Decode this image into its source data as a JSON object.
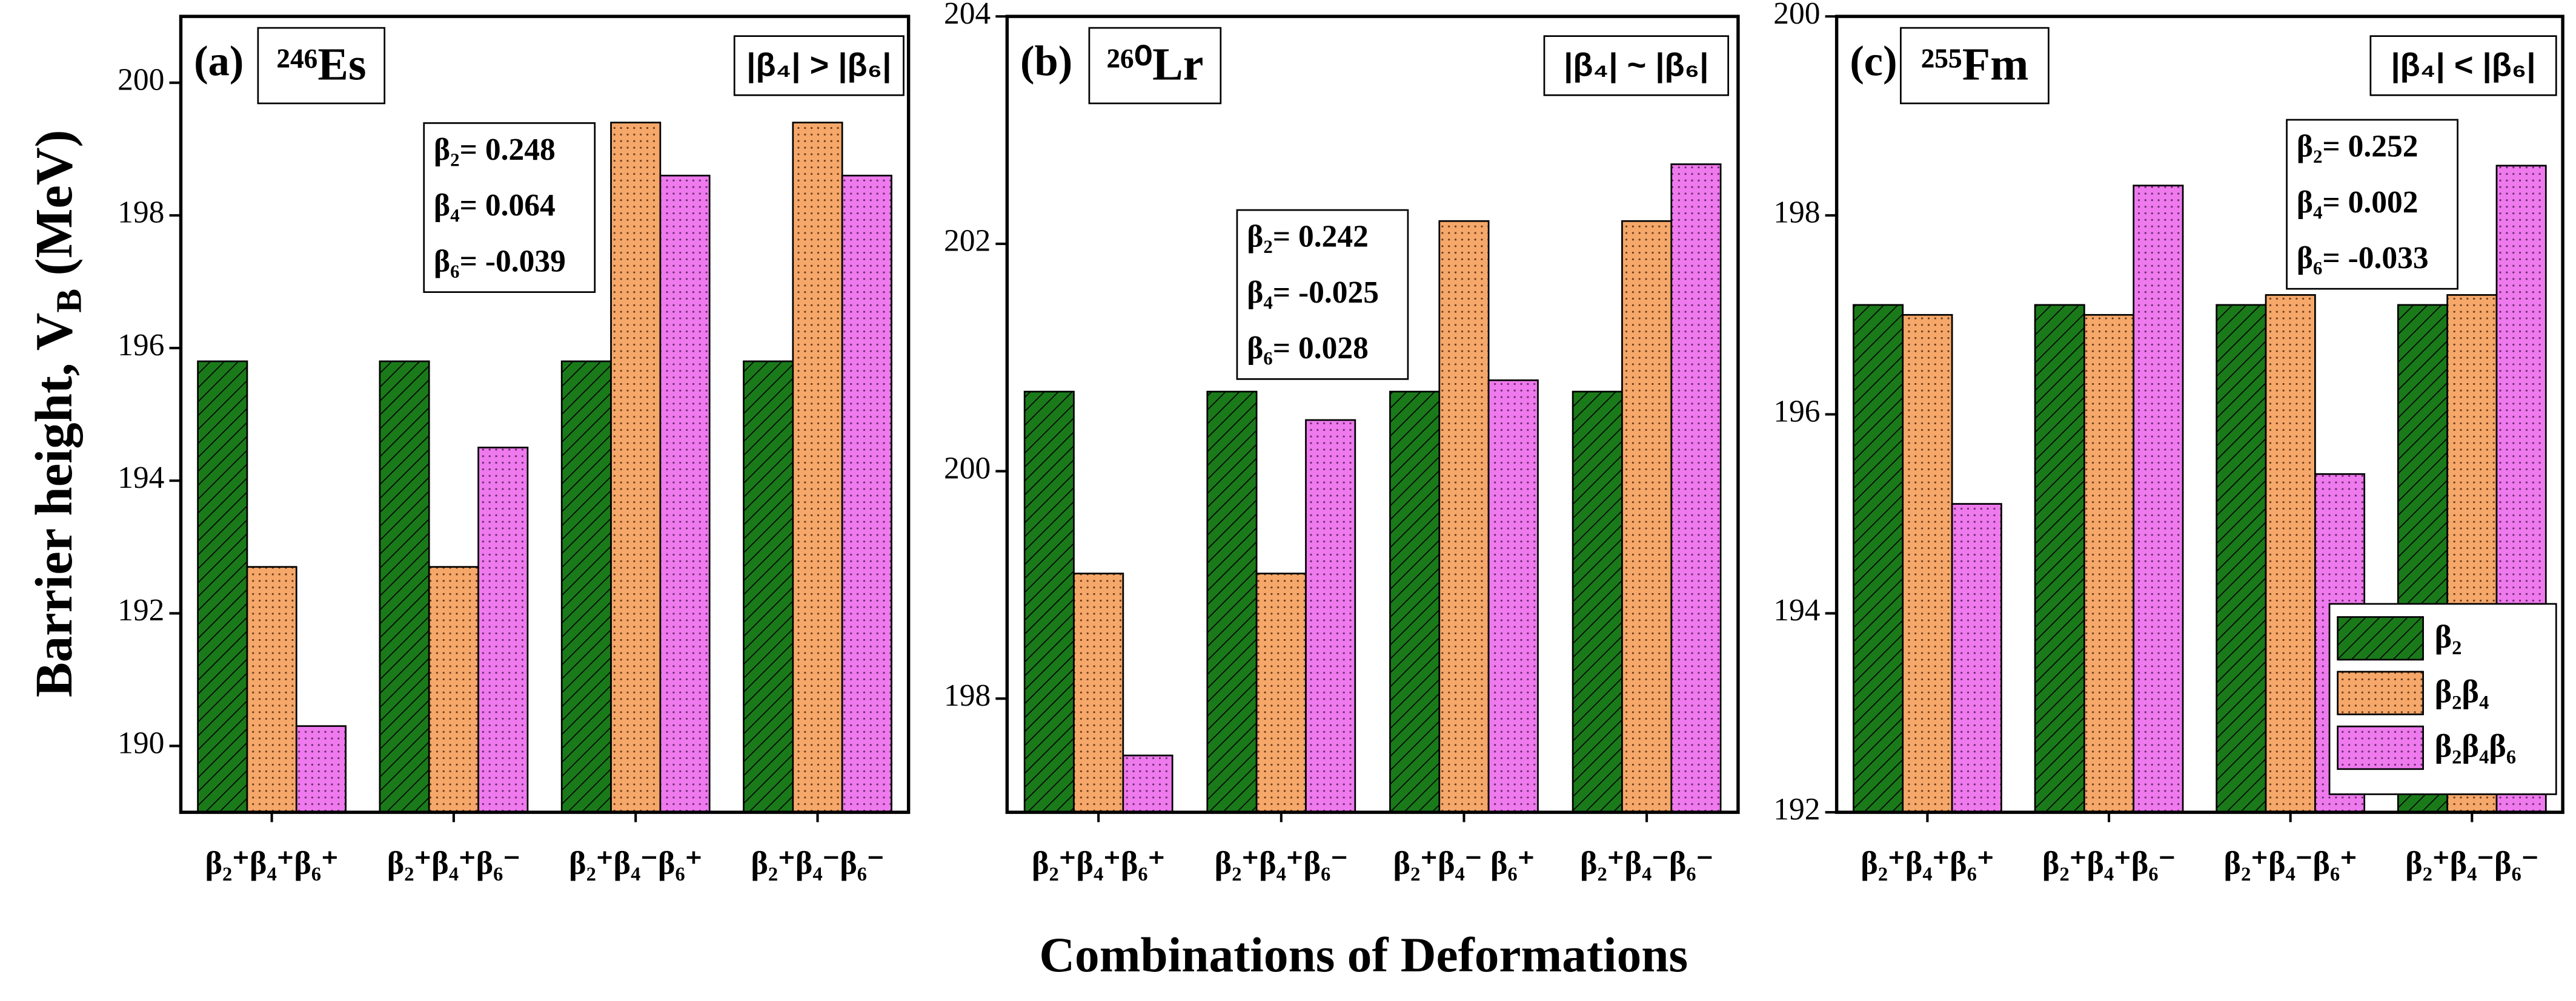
{
  "xlabel": "Combinations of Deformations",
  "ylabel": {
    "text": "Barrier height, V",
    "subscript": "B",
    "unit": "(MeV)"
  },
  "chart_data": [
    {
      "type": "bar",
      "panel": "(a)",
      "nucleus": "²⁴⁶Es",
      "condition": "|β₄| > |β₆|",
      "annotation": [
        "β₂= 0.248",
        "β₄= 0.064",
        "β₆= -0.039"
      ],
      "categories": [
        "β₂⁺β₄⁺β₆⁺",
        "β₂⁺β₄⁺β₆⁻",
        "β₂⁺β₄⁻β₆⁺",
        "β₂⁺β₄⁻β₆⁻"
      ],
      "series": [
        {
          "name": "β₂",
          "color": "#1a7a1a",
          "values": [
            195.8,
            195.8,
            195.8,
            195.8
          ]
        },
        {
          "name": "β₂β₄",
          "color": "#f5a86a",
          "values": [
            192.7,
            192.7,
            199.4,
            199.4
          ]
        },
        {
          "name": "β₂β₄β₆",
          "color": "#ee7aee",
          "values": [
            190.3,
            194.5,
            198.6,
            198.6
          ]
        }
      ],
      "ylim": [
        189,
        201
      ],
      "yticks": [
        190,
        192,
        194,
        196,
        198,
        200
      ]
    },
    {
      "type": "bar",
      "panel": "(b)",
      "nucleus": "²⁶⁰Lr",
      "condition": "|β₄| ~ |β₆|",
      "annotation": [
        "β₂= 0.242",
        "β₄= -0.025",
        "β₆= 0.028"
      ],
      "categories": [
        "β₂⁺β₄⁺β₆⁺",
        "β₂⁺β₄⁺β₆⁻",
        "β₂⁺β₄⁻ β₆⁺",
        "β₂⁺β₄⁻β₆⁻"
      ],
      "series": [
        {
          "name": "β₂",
          "color": "#1a7a1a",
          "values": [
            200.7,
            200.7,
            200.7,
            200.7
          ]
        },
        {
          "name": "β₂β₄",
          "color": "#f5a86a",
          "values": [
            199.1,
            199.1,
            202.2,
            202.2
          ]
        },
        {
          "name": "β₂β₄β₆",
          "color": "#ee7aee",
          "values": [
            197.5,
            200.45,
            200.8,
            202.7
          ]
        }
      ],
      "ylim": [
        197,
        204
      ],
      "yticks": [
        198,
        200,
        202,
        204
      ]
    },
    {
      "type": "bar",
      "panel": "(c)",
      "nucleus": "²⁵⁵Fm",
      "condition": "|β₄| < |β₆|",
      "annotation": [
        "β₂= 0.252",
        "β₄= 0.002",
        "β₆= -0.033"
      ],
      "categories": [
        "β₂⁺β₄⁺β₆⁺",
        "β₂⁺β₄⁺β₆⁻",
        "β₂⁺β₄⁻β₆⁺",
        "β₂⁺β₄⁻β₆⁻"
      ],
      "series": [
        {
          "name": "β₂",
          "color": "#1a7a1a",
          "values": [
            197.1,
            197.1,
            197.1,
            197.1
          ]
        },
        {
          "name": "β₂β₄",
          "color": "#f5a86a",
          "values": [
            197.0,
            197.0,
            197.2,
            197.2
          ]
        },
        {
          "name": "β₂β₄β₆",
          "color": "#ee7aee",
          "values": [
            195.1,
            198.3,
            195.4,
            198.5
          ]
        }
      ],
      "ylim": [
        192,
        200
      ],
      "yticks": [
        192,
        194,
        196,
        198,
        200
      ],
      "legend": "lower right"
    }
  ]
}
